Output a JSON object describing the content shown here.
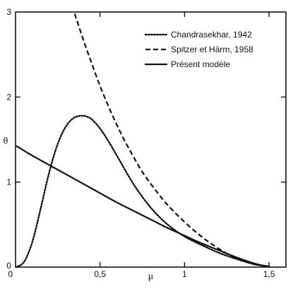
{
  "chart_data": {
    "type": "line",
    "xlabel": "μ",
    "ylabel": "θ",
    "xlim": [
      0,
      1.6
    ],
    "ylim": [
      0,
      3
    ],
    "x_ticks": [
      {
        "value": 0,
        "label": "0"
      },
      {
        "value": 0.5,
        "label": "0,5"
      },
      {
        "value": 1,
        "label": "1"
      },
      {
        "value": 1.5,
        "label": "1,5"
      }
    ],
    "y_ticks": [
      {
        "value": 0,
        "label": "0"
      },
      {
        "value": 1,
        "label": "1"
      },
      {
        "value": 2,
        "label": "2"
      },
      {
        "value": 3,
        "label": "3"
      }
    ],
    "legend_position": "top-right",
    "series": [
      {
        "name": "Chandrasekhar, 1942",
        "style": "dotted",
        "x": [
          0,
          0.05,
          0.1,
          0.15,
          0.2,
          0.25,
          0.3,
          0.35,
          0.4,
          0.42,
          0.45,
          0.5,
          0.55,
          0.6,
          0.7,
          0.8,
          0.9,
          1.0,
          1.1,
          1.2,
          1.3,
          1.4,
          1.45,
          1.5
        ],
        "y": [
          0,
          0.06,
          0.3,
          0.7,
          1.12,
          1.45,
          1.66,
          1.76,
          1.78,
          1.77,
          1.74,
          1.63,
          1.48,
          1.31,
          0.97,
          0.7,
          0.5,
          0.36,
          0.26,
          0.17,
          0.1,
          0.04,
          0.02,
          0.01
        ]
      },
      {
        "name": "Spitzer et Härm, 1958",
        "style": "dashed",
        "x": [
          0.35,
          0.4,
          0.45,
          0.5,
          0.55,
          0.6,
          0.65,
          0.7,
          0.75,
          0.8,
          0.85,
          0.9,
          1.0,
          1.1,
          1.2,
          1.3,
          1.4,
          1.5
        ],
        "y": [
          2.98,
          2.68,
          2.4,
          2.13,
          1.89,
          1.67,
          1.47,
          1.29,
          1.12,
          0.98,
          0.85,
          0.73,
          0.53,
          0.36,
          0.22,
          0.11,
          0.04,
          0.01
        ]
      },
      {
        "name": "Présent modèle",
        "style": "solid",
        "x": [
          0,
          0.1,
          0.2,
          0.3,
          0.4,
          0.5,
          0.6,
          0.7,
          0.8,
          0.9,
          1.0,
          1.1,
          1.2,
          1.3,
          1.4,
          1.5
        ],
        "y": [
          1.43,
          1.31,
          1.2,
          1.09,
          0.98,
          0.87,
          0.76,
          0.66,
          0.56,
          0.46,
          0.37,
          0.28,
          0.2,
          0.12,
          0.05,
          0.0
        ]
      }
    ]
  }
}
